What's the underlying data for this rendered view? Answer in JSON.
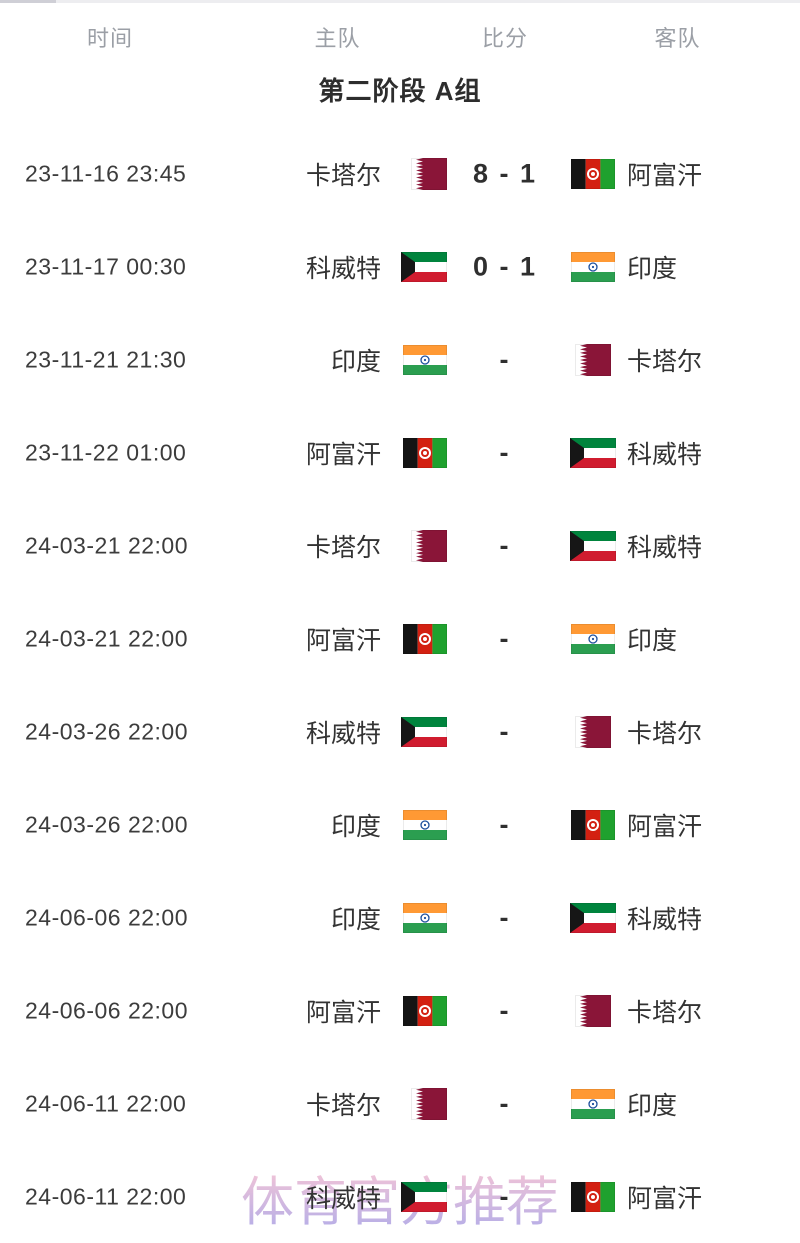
{
  "table": {
    "columns": [
      {
        "key": "time",
        "label": "时间"
      },
      {
        "key": "home",
        "label": "主队"
      },
      {
        "key": "score",
        "label": "比分"
      },
      {
        "key": "away",
        "label": "客队"
      }
    ],
    "group_title": "第二阶段 A组",
    "rows": [
      {
        "time": "23-11-16 23:45",
        "home": {
          "name": "卡塔尔",
          "flag": "qatar"
        },
        "score": "8 - 1",
        "away": {
          "name": "阿富汗",
          "flag": "afghanistan"
        }
      },
      {
        "time": "23-11-17 00:30",
        "home": {
          "name": "科威特",
          "flag": "kuwait"
        },
        "score": "0 - 1",
        "away": {
          "name": "印度",
          "flag": "india"
        }
      },
      {
        "time": "23-11-21 21:30",
        "home": {
          "name": "印度",
          "flag": "india"
        },
        "score": "-",
        "away": {
          "name": "卡塔尔",
          "flag": "qatar"
        }
      },
      {
        "time": "23-11-22 01:00",
        "home": {
          "name": "阿富汗",
          "flag": "afghanistan"
        },
        "score": "-",
        "away": {
          "name": "科威特",
          "flag": "kuwait"
        }
      },
      {
        "time": "24-03-21 22:00",
        "home": {
          "name": "卡塔尔",
          "flag": "qatar"
        },
        "score": "-",
        "away": {
          "name": "科威特",
          "flag": "kuwait"
        }
      },
      {
        "time": "24-03-21 22:00",
        "home": {
          "name": "阿富汗",
          "flag": "afghanistan"
        },
        "score": "-",
        "away": {
          "name": "印度",
          "flag": "india"
        }
      },
      {
        "time": "24-03-26 22:00",
        "home": {
          "name": "科威特",
          "flag": "kuwait"
        },
        "score": "-",
        "away": {
          "name": "卡塔尔",
          "flag": "qatar"
        }
      },
      {
        "time": "24-03-26 22:00",
        "home": {
          "name": "印度",
          "flag": "india"
        },
        "score": "-",
        "away": {
          "name": "阿富汗",
          "flag": "afghanistan"
        }
      },
      {
        "time": "24-06-06 22:00",
        "home": {
          "name": "印度",
          "flag": "india"
        },
        "score": "-",
        "away": {
          "name": "科威特",
          "flag": "kuwait"
        }
      },
      {
        "time": "24-06-06 22:00",
        "home": {
          "name": "阿富汗",
          "flag": "afghanistan"
        },
        "score": "-",
        "away": {
          "name": "卡塔尔",
          "flag": "qatar"
        }
      },
      {
        "time": "24-06-11 22:00",
        "home": {
          "name": "卡塔尔",
          "flag": "qatar"
        },
        "score": "-",
        "away": {
          "name": "印度",
          "flag": "india"
        }
      },
      {
        "time": "24-06-11 22:00",
        "home": {
          "name": "科威特",
          "flag": "kuwait"
        },
        "score": "-",
        "away": {
          "name": "阿富汗",
          "flag": "afghanistan"
        }
      }
    ]
  },
  "watermark": {
    "text": "体育官方推荐",
    "color_top": "#f3bcd0",
    "color_bottom": "#a79fe4"
  },
  "flag_palette": {
    "qatar": {
      "maroon": "#8a1538",
      "white": "#ffffff"
    },
    "kuwait": {
      "green": "#00843d",
      "white": "#ffffff",
      "red": "#d01c2f",
      "black": "#161616"
    },
    "india": {
      "saffron": "#ff9934",
      "white": "#ffffff",
      "green": "#2b9e50",
      "navy": "#1d4f9c"
    },
    "afghanistan": {
      "black": "#141414",
      "red": "#d32011",
      "green": "#1fa12e",
      "white": "#ffffff"
    }
  }
}
